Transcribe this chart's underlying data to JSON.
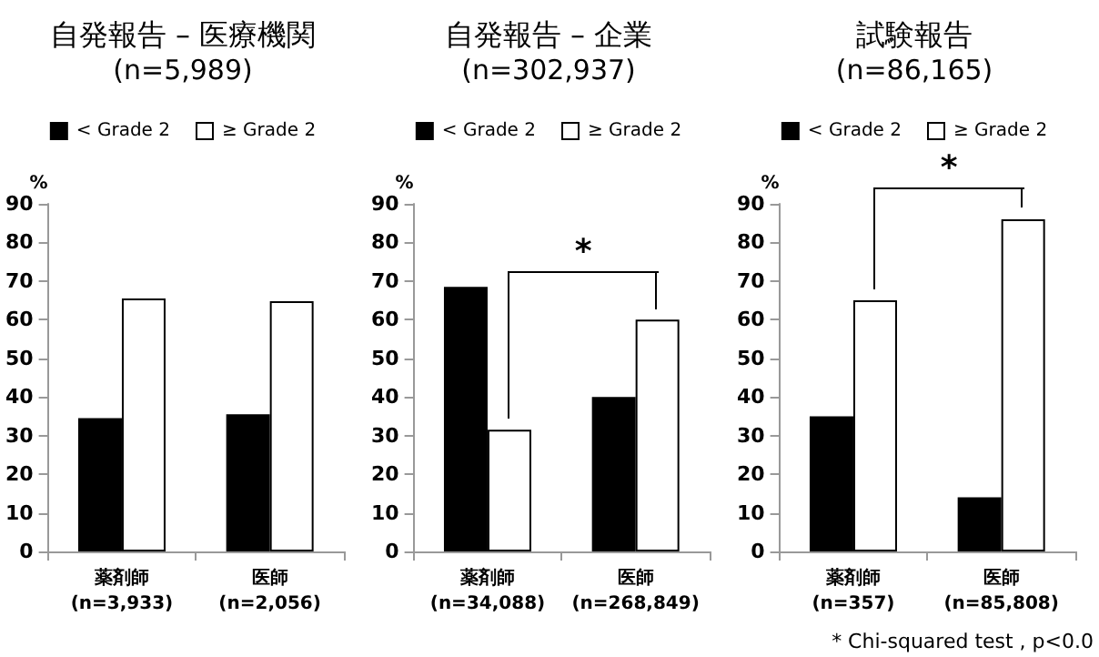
{
  "chart_data": [
    {
      "type": "bar",
      "title": "自発報告 – 医療機関",
      "subtitle": "(n=5,989)",
      "ylabel": "%",
      "categories": [
        "薬剤師\n(n=3,933)",
        "医師\n(n=2,056)"
      ],
      "series": [
        {
          "name": "< Grade 2",
          "color": "#000000",
          "values": [
            34.5,
            35.5
          ]
        },
        {
          "name": "≥ Grade 2",
          "color": "#ffffff",
          "values": [
            65.5,
            64.8
          ]
        }
      ],
      "ylim": [
        0,
        90
      ],
      "yticks": [
        0,
        10,
        20,
        30,
        40,
        50,
        60,
        70,
        80,
        90
      ],
      "grid": false,
      "legend": "top"
    },
    {
      "type": "bar",
      "title": "自発報告 – 企業",
      "subtitle": "(n=302,937)",
      "ylabel": "%",
      "categories": [
        "薬剤師\n(n=34,088)",
        "医師\n(n=268,849)"
      ],
      "series": [
        {
          "name": "< Grade 2",
          "color": "#000000",
          "values": [
            68.5,
            40
          ]
        },
        {
          "name": "≥ Grade 2",
          "color": "#ffffff",
          "values": [
            31.5,
            60
          ]
        }
      ],
      "ylim": [
        0,
        90
      ],
      "yticks": [
        0,
        10,
        20,
        30,
        40,
        50,
        60,
        70,
        80,
        90
      ],
      "grid": false,
      "legend": "top",
      "annotations": [
        "*"
      ]
    },
    {
      "type": "bar",
      "title": "試験報告",
      "subtitle": "(n=86,165)",
      "ylabel": "%",
      "categories": [
        "薬剤師\n(n=357)",
        "医師\n(n=85,808)"
      ],
      "series": [
        {
          "name": "< Grade 2",
          "color": "#000000",
          "values": [
            35,
            14
          ]
        },
        {
          "name": "≥ Grade 2",
          "color": "#ffffff",
          "values": [
            65,
            86
          ]
        }
      ],
      "ylim": [
        0,
        90
      ],
      "yticks": [
        0,
        10,
        20,
        30,
        40,
        50,
        60,
        70,
        80,
        90
      ],
      "grid": false,
      "legend": "top",
      "annotations": [
        "*",
        "* Chi-squared test , p<0.0"
      ]
    }
  ]
}
